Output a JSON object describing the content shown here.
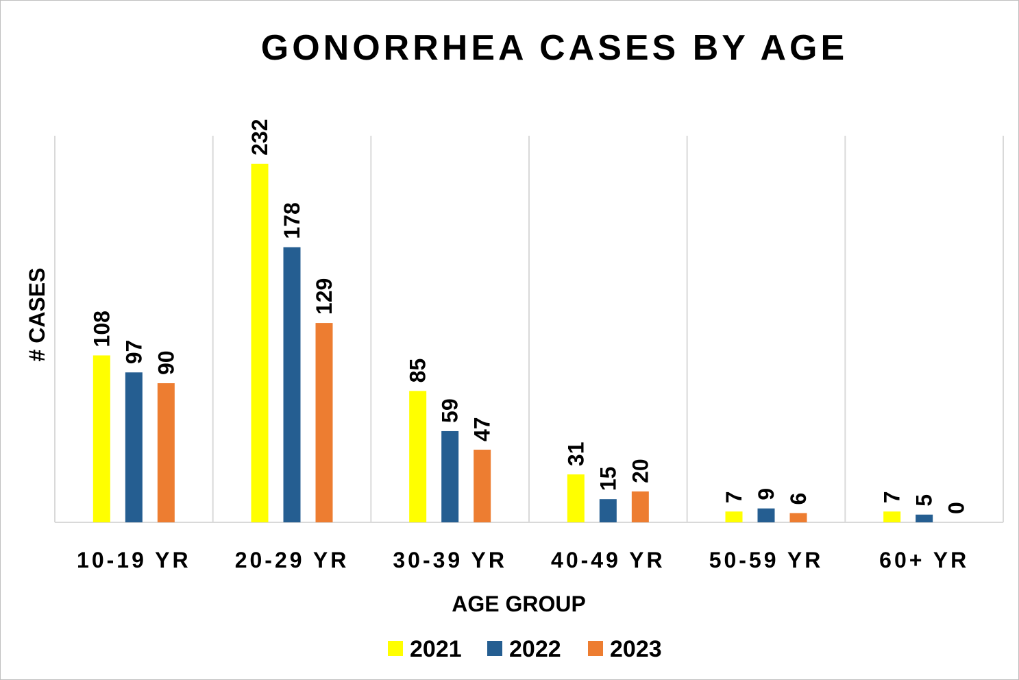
{
  "chart_data": {
    "type": "bar",
    "title": "GONORRHEA CASES BY AGE",
    "xlabel": "AGE GROUP",
    "ylabel": "# CASES",
    "categories": [
      "10-19 YR",
      "20-29 YR",
      "30-39 YR",
      "40-49 YR",
      "50-59 YR",
      "60+ YR"
    ],
    "series": [
      {
        "name": "2021",
        "color": "#FFFF00",
        "values": [
          108,
          232,
          85,
          31,
          7,
          7
        ]
      },
      {
        "name": "2022",
        "color": "#255E91",
        "values": [
          97,
          178,
          59,
          15,
          9,
          5
        ]
      },
      {
        "name": "2023",
        "color": "#ED7D31",
        "values": [
          90,
          129,
          47,
          20,
          6,
          0
        ]
      }
    ],
    "ylim": [
      0,
      250
    ],
    "grid": "vertical category separators",
    "legend": "bottom",
    "data_labels": true
  }
}
